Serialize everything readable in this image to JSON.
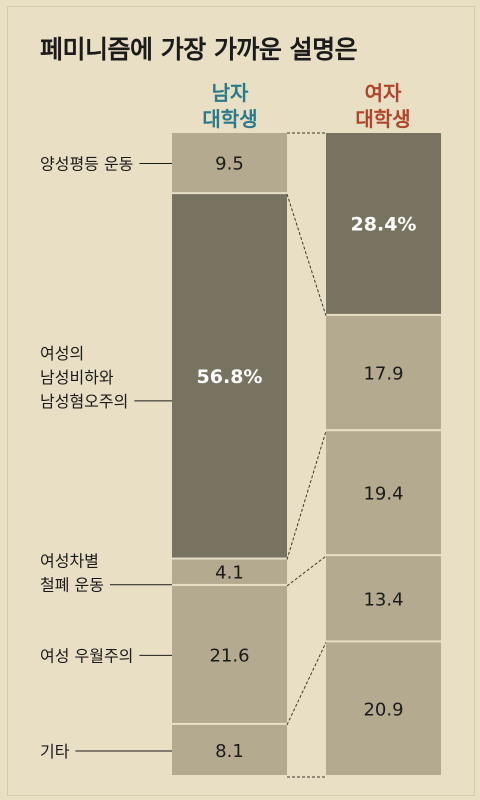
{
  "title": "페미니즘에 가장 가까운 설명은",
  "columns": {
    "male": [
      "남자",
      "대학생"
    ],
    "female": [
      "여자",
      "대학생"
    ]
  },
  "colors": {
    "background": "#e8dfc4",
    "segment": "#b3aa90",
    "highlight": "#777360",
    "male_header": "#2a7a8c",
    "female_header": "#b0452b",
    "labels": "#1b1b1b",
    "highlight_text": "#ffffff"
  },
  "chart_data": {
    "type": "bar",
    "stacked": true,
    "normalized": true,
    "title": "페미니즘에 가장 가까운 설명은",
    "unit": "%",
    "categories": [
      "양성평등 운동",
      "여성의 남성비하와 남성혐오주의",
      "여성차별 철폐 운동",
      "여성 우월주의",
      "기타"
    ],
    "category_lines": [
      [
        "양성평등 운동"
      ],
      [
        "여성의",
        "남성비하와",
        "남성혐오주의"
      ],
      [
        "여성차별",
        "철폐 운동"
      ],
      [
        "여성 우월주의"
      ],
      [
        "기타"
      ]
    ],
    "series": [
      {
        "name": "남자 대학생",
        "values": [
          9.5,
          56.8,
          4.1,
          21.6,
          8.1
        ],
        "labels": [
          "9.5",
          "56.8%",
          "4.1",
          "21.6",
          "8.1"
        ],
        "highlight_index": 1
      },
      {
        "name": "여자 대학생",
        "values": [
          28.4,
          17.9,
          19.4,
          13.4,
          20.9
        ],
        "labels": [
          "28.4%",
          "17.9",
          "19.4",
          "13.4",
          "20.9"
        ],
        "highlight_index": 0
      }
    ]
  }
}
